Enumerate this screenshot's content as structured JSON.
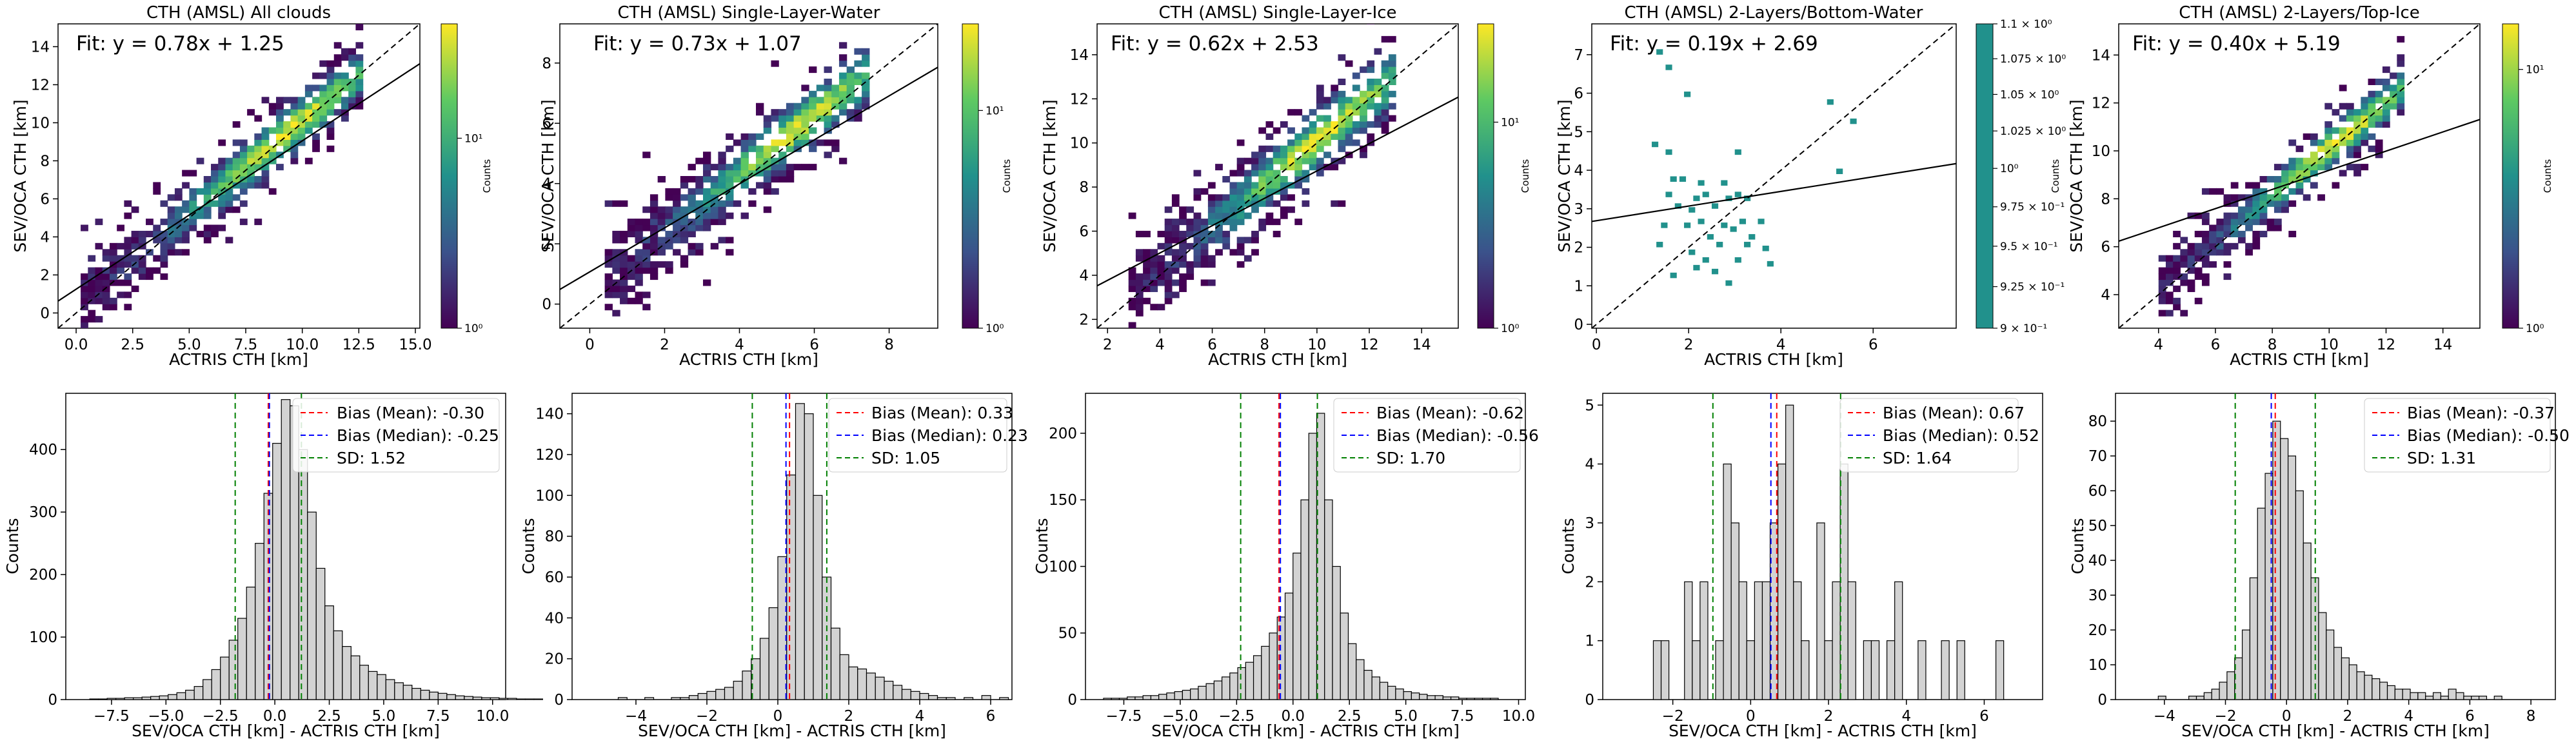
{
  "figure": {
    "colormap": [
      "#440154",
      "#3b528b",
      "#21918c",
      "#5ec962",
      "#fde725"
    ],
    "colors": {
      "one_to_one": "#000000",
      "fit_line": "#000000",
      "hist_fill": "#d3d3d3",
      "bias_mean": "#ff0000",
      "bias_median": "#0000ff",
      "sd": "#008000"
    }
  },
  "chart_data": [
    {
      "type": "heatmap",
      "title": "CTH (AMSL) All clouds",
      "xlabel": "ACTRIS CTH [km]",
      "ylabel": "SEV/OCA CTH [km]",
      "xlim": [
        -0.8,
        15.2
      ],
      "ylim": [
        -0.8,
        15.2
      ],
      "xticks": [
        "0.0",
        "2.5",
        "5.0",
        "7.5",
        "10.0",
        "12.5",
        "15.0"
      ],
      "xtick_values": [
        0,
        2.5,
        5,
        7.5,
        10,
        12.5,
        15
      ],
      "yticks": [
        "0",
        "2",
        "4",
        "6",
        "8",
        "10",
        "12",
        "14"
      ],
      "ytick_values": [
        0,
        2,
        4,
        6,
        8,
        10,
        12,
        14
      ],
      "fit_text": "Fit: y = 0.78x + 1.25",
      "fit": {
        "slope": 0.78,
        "intercept": 1.25
      },
      "colorbar": {
        "label": "Counts",
        "scale": "log",
        "min": 1,
        "max": 40,
        "ticks": [
          "10⁰",
          "10¹"
        ],
        "tick_values": [
          1,
          10
        ]
      },
      "density": {
        "x0": 0.2,
        "x1": 12.6,
        "spread": 1.25,
        "bins": 0.3
      }
    },
    {
      "type": "heatmap",
      "title": "CTH (AMSL) Single-Layer-Water",
      "xlabel": "ACTRIS CTH [km]",
      "ylabel": "SEV/OCA CTH [km]",
      "xlim": [
        -0.8,
        9.3
      ],
      "ylim": [
        -0.8,
        9.3
      ],
      "xticks": [
        "0",
        "2",
        "4",
        "6",
        "8"
      ],
      "xtick_values": [
        0,
        2,
        4,
        6,
        8
      ],
      "yticks": [
        "0",
        "2",
        "4",
        "6",
        "8"
      ],
      "ytick_values": [
        0,
        2,
        4,
        6,
        8
      ],
      "fit_text": "Fit: y = 0.73x + 1.07",
      "fit": {
        "slope": 0.73,
        "intercept": 1.07
      },
      "colorbar": {
        "label": "Counts",
        "scale": "log",
        "min": 1,
        "max": 25,
        "ticks": [
          "10⁰",
          "10¹"
        ],
        "tick_values": [
          1,
          10
        ]
      },
      "density": {
        "x0": 0.4,
        "x1": 7.4,
        "spread": 0.9,
        "bins": 0.2
      }
    },
    {
      "type": "heatmap",
      "title": "CTH (AMSL) Single-Layer-Ice",
      "xlabel": "ACTRIS CTH [km]",
      "ylabel": "SEV/OCA CTH [km]",
      "xlim": [
        1.6,
        15.4
      ],
      "ylim": [
        1.6,
        15.4
      ],
      "xticks": [
        "2",
        "4",
        "6",
        "8",
        "10",
        "12",
        "14"
      ],
      "xtick_values": [
        2,
        4,
        6,
        8,
        10,
        12,
        14
      ],
      "yticks": [
        "2",
        "4",
        "6",
        "8",
        "10",
        "12",
        "14"
      ],
      "ytick_values": [
        2,
        4,
        6,
        8,
        10,
        12,
        14
      ],
      "fit_text": "Fit: y = 0.62x + 2.53",
      "fit": {
        "slope": 0.62,
        "intercept": 2.53
      },
      "colorbar": {
        "label": "Counts",
        "scale": "log",
        "min": 1,
        "max": 30,
        "ticks": [
          "10⁰",
          "10¹"
        ],
        "tick_values": [
          1,
          10
        ]
      },
      "density": {
        "x0": 2.8,
        "x1": 12.8,
        "spread": 1.3,
        "bins": 0.26
      }
    },
    {
      "type": "scatter",
      "title": "CTH (AMSL) 2-Layers/Bottom-Water",
      "xlabel": "ACTRIS CTH [km]",
      "ylabel": "SEV/OCA CTH [km]",
      "xlim": [
        -0.1,
        7.8
      ],
      "ylim": [
        -0.1,
        7.8
      ],
      "xticks": [
        "0",
        "2",
        "4",
        "6"
      ],
      "xtick_values": [
        0,
        2,
        4,
        6
      ],
      "yticks": [
        "0",
        "1",
        "2",
        "3",
        "4",
        "5",
        "6",
        "7"
      ],
      "ytick_values": [
        0,
        1,
        2,
        3,
        4,
        5,
        6,
        7
      ],
      "fit_text": "Fit: y = 0.19x + 2.69",
      "fit": {
        "slope": 0.19,
        "intercept": 2.69
      },
      "colorbar": {
        "label": "Counts",
        "scale": "log",
        "min": 0.9,
        "max": 1.1,
        "ticks": [
          "9 × 10⁻¹",
          "9.25 × 10⁻¹",
          "9.5 × 10⁻¹",
          "9.75 × 10⁻¹",
          "10⁰",
          "1.025 × 10⁰",
          "1.05 × 10⁰",
          "1.075 × 10⁰",
          "1.1 × 10⁰"
        ],
        "tick_values": [
          0.9,
          0.925,
          0.95,
          0.975,
          1.0,
          1.025,
          1.05,
          1.075,
          1.1
        ]
      },
      "points": [
        [
          1.3,
          7.0
        ],
        [
          1.5,
          6.6
        ],
        [
          1.2,
          4.6
        ],
        [
          1.5,
          4.4
        ],
        [
          1.6,
          3.7
        ],
        [
          1.8,
          3.7
        ],
        [
          1.5,
          3.3
        ],
        [
          1.7,
          3.0
        ],
        [
          2.0,
          2.9
        ],
        [
          2.1,
          3.2
        ],
        [
          2.3,
          3.3
        ],
        [
          2.5,
          3.0
        ],
        [
          2.8,
          3.2
        ],
        [
          3.0,
          3.3
        ],
        [
          3.2,
          3.2
        ],
        [
          1.4,
          2.5
        ],
        [
          1.9,
          2.5
        ],
        [
          2.2,
          2.6
        ],
        [
          2.4,
          2.2
        ],
        [
          2.6,
          2.0
        ],
        [
          2.7,
          2.5
        ],
        [
          2.9,
          2.4
        ],
        [
          3.1,
          2.6
        ],
        [
          3.3,
          2.2
        ],
        [
          3.5,
          2.6
        ],
        [
          1.3,
          2.0
        ],
        [
          2.0,
          1.8
        ],
        [
          2.3,
          1.6
        ],
        [
          2.5,
          1.3
        ],
        [
          2.8,
          1.0
        ],
        [
          3.0,
          1.6
        ],
        [
          3.2,
          2.0
        ],
        [
          3.6,
          1.9
        ],
        [
          3.7,
          1.5
        ],
        [
          1.6,
          1.2
        ],
        [
          2.1,
          1.4
        ],
        [
          1.9,
          5.9
        ],
        [
          3.0,
          4.4
        ],
        [
          5.0,
          5.7
        ],
        [
          5.5,
          5.2
        ],
        [
          5.2,
          3.9
        ],
        [
          2.2,
          3.6
        ],
        [
          2.7,
          3.6
        ]
      ]
    },
    {
      "type": "heatmap",
      "title": "CTH (AMSL) 2-Layers/Top-Ice",
      "xlabel": "ACTRIS CTH [km]",
      "ylabel": "SEV/OCA CTH [km]",
      "xlim": [
        2.6,
        15.3
      ],
      "ylim": [
        2.6,
        15.3
      ],
      "xticks": [
        "4",
        "6",
        "8",
        "10",
        "12",
        "14"
      ],
      "xtick_values": [
        4,
        6,
        8,
        10,
        12,
        14
      ],
      "yticks": [
        "4",
        "6",
        "8",
        "10",
        "12",
        "14"
      ],
      "ytick_values": [
        4,
        6,
        8,
        10,
        12,
        14
      ],
      "fit_text": "Fit: y = 0.40x + 5.19",
      "fit": {
        "slope": 0.4,
        "intercept": 5.19
      },
      "colorbar": {
        "label": "Counts",
        "scale": "log",
        "min": 1,
        "max": 15,
        "ticks": [
          "10⁰",
          "10¹"
        ],
        "tick_values": [
          1,
          10
        ]
      },
      "density": {
        "x0": 4.0,
        "x1": 12.6,
        "spread": 0.9,
        "bins": 0.3
      }
    },
    {
      "type": "bar",
      "xlabel": "SEV/OCA CTH [km] - ACTRIS CTH [km]",
      "ylabel": "Counts",
      "xlim": [
        -9.6,
        10.6
      ],
      "ylim": [
        0,
        490
      ],
      "xticks": [
        "−7.5",
        "−5.0",
        "−2.5",
        "0.0",
        "2.5",
        "5.0",
        "7.5",
        "10.0"
      ],
      "xtick_values": [
        -7.5,
        -5,
        -2.5,
        0,
        2.5,
        5,
        7.5,
        10
      ],
      "yticks": [
        "0",
        "100",
        "200",
        "300",
        "400"
      ],
      "ytick_values": [
        0,
        100,
        200,
        300,
        400
      ],
      "hist": {
        "start": -8.5,
        "width": 0.4,
        "counts": [
          1,
          1,
          2,
          2,
          3,
          3,
          4,
          5,
          6,
          8,
          11,
          15,
          21,
          32,
          48,
          68,
          95,
          130,
          180,
          250,
          330,
          410,
          480,
          470,
          400,
          300,
          210,
          150,
          110,
          85,
          70,
          55,
          45,
          40,
          32,
          27,
          23,
          18,
          15,
          12,
          10,
          8,
          6,
          5,
          4,
          3,
          3,
          2,
          2,
          1,
          1,
          1
        ]
      },
      "bias_mean": -0.3,
      "bias_median": -0.25,
      "sd": 1.52,
      "legend": [
        "Bias (Mean): -0.30",
        "Bias (Median): -0.25",
        "SD: 1.52"
      ]
    },
    {
      "type": "bar",
      "xlabel": "SEV/OCA CTH [km] - ACTRIS CTH [km]",
      "ylabel": "Counts",
      "xlim": [
        -5.8,
        6.6
      ],
      "ylim": [
        0,
        150
      ],
      "xticks": [
        "−4",
        "−2",
        "0",
        "2",
        "4",
        "6"
      ],
      "xtick_values": [
        -4,
        -2,
        0,
        2,
        4,
        6
      ],
      "yticks": [
        "0",
        "20",
        "40",
        "60",
        "80",
        "100",
        "120",
        "140"
      ],
      "ytick_values": [
        0,
        20,
        40,
        60,
        80,
        100,
        120,
        140
      ],
      "hist": {
        "start": -4.5,
        "width": 0.25,
        "counts": [
          1,
          0,
          0,
          1,
          0,
          0,
          1,
          1,
          2,
          3,
          4,
          5,
          6,
          9,
          14,
          20,
          30,
          45,
          70,
          110,
          145,
          140,
          100,
          60,
          35,
          22,
          16,
          15,
          13,
          11,
          9,
          7,
          5,
          4,
          3,
          2,
          1,
          1,
          0,
          1,
          0,
          2,
          0,
          1
        ]
      },
      "bias_mean": 0.33,
      "bias_median": 0.23,
      "sd": 1.05,
      "legend": [
        "Bias (Mean): 0.33",
        "Bias (Median): 0.23",
        "SD: 1.05"
      ]
    },
    {
      "type": "bar",
      "xlabel": "SEV/OCA CTH [km] - ACTRIS CTH [km]",
      "ylabel": "Counts",
      "xlim": [
        -9.2,
        10.3
      ],
      "ylim": [
        0,
        230
      ],
      "xticks": [
        "−7.5",
        "−5.0",
        "−2.5",
        "0.0",
        "2.5",
        "5.0",
        "7.5",
        "10.0"
      ],
      "xtick_values": [
        -7.5,
        -5,
        -2.5,
        0,
        2.5,
        5,
        7.5,
        10
      ],
      "yticks": [
        "0",
        "50",
        "100",
        "150",
        "200"
      ],
      "ytick_values": [
        0,
        50,
        100,
        150,
        200
      ],
      "hist": {
        "start": -8.4,
        "width": 0.35,
        "counts": [
          1,
          1,
          1,
          2,
          2,
          3,
          3,
          4,
          5,
          6,
          7,
          8,
          10,
          12,
          14,
          17,
          20,
          24,
          28,
          33,
          40,
          50,
          62,
          80,
          110,
          150,
          200,
          215,
          150,
          100,
          65,
          42,
          30,
          22,
          17,
          13,
          10,
          8,
          6,
          5,
          4,
          3,
          3,
          2,
          2,
          1,
          1,
          1,
          1,
          1
        ]
      },
      "bias_mean": -0.62,
      "bias_median": -0.56,
      "sd": 1.7,
      "legend": [
        "Bias (Mean): -0.62",
        "Bias (Median): -0.56",
        "SD: 1.70"
      ]
    },
    {
      "type": "bar",
      "xlabel": "SEV/OCA CTH [km] - ACTRIS CTH [km]",
      "ylabel": "Counts",
      "xlim": [
        -3.8,
        7.5
      ],
      "ylim": [
        0,
        5.2
      ],
      "xticks": [
        "−2",
        "0",
        "2",
        "4",
        "6"
      ],
      "xtick_values": [
        -2,
        0,
        2,
        4,
        6
      ],
      "yticks": [
        "0",
        "1",
        "2",
        "3",
        "4",
        "5"
      ],
      "ytick_values": [
        0,
        1,
        2,
        3,
        4,
        5
      ],
      "hist": {
        "start": -2.5,
        "width": 0.2,
        "counts": [
          1,
          1,
          0,
          0,
          2,
          1,
          2,
          0,
          1,
          4,
          3,
          2,
          1,
          2,
          2,
          3,
          4,
          5,
          2,
          1,
          0,
          3,
          1,
          2,
          4,
          2,
          0,
          1,
          1,
          0,
          1,
          2,
          0,
          0,
          1,
          0,
          0,
          1,
          0,
          1,
          0,
          0,
          0,
          0,
          1
        ]
      },
      "bias_mean": 0.67,
      "bias_median": 0.52,
      "sd": 1.64,
      "legend": [
        "Bias (Mean): 0.67",
        "Bias (Median): 0.52",
        "SD: 1.64"
      ]
    },
    {
      "type": "bar",
      "xlabel": "SEV/OCA CTH [km] - ACTRIS CTH [km]",
      "ylabel": "Counts",
      "xlim": [
        -5.6,
        8.8
      ],
      "ylim": [
        0,
        88
      ],
      "xticks": [
        "−4",
        "−2",
        "0",
        "2",
        "4",
        "6",
        "8"
      ],
      "xtick_values": [
        -4,
        -2,
        0,
        2,
        4,
        6,
        8
      ],
      "yticks": [
        "0",
        "10",
        "20",
        "30",
        "40",
        "50",
        "60",
        "70",
        "80"
      ],
      "ytick_values": [
        0,
        10,
        20,
        30,
        40,
        50,
        60,
        70,
        80
      ],
      "hist": {
        "start": -4.2,
        "width": 0.25,
        "counts": [
          1,
          0,
          0,
          0,
          1,
          1,
          2,
          3,
          5,
          8,
          12,
          20,
          35,
          55,
          65,
          80,
          75,
          70,
          60,
          45,
          35,
          25,
          20,
          15,
          12,
          10,
          8,
          7,
          6,
          5,
          4,
          3,
          3,
          2,
          2,
          1,
          2,
          1,
          3,
          2,
          1,
          1,
          1,
          0,
          1
        ]
      },
      "bias_mean": -0.37,
      "bias_median": -0.5,
      "sd": 1.31,
      "legend": [
        "Bias (Mean): -0.37",
        "Bias (Median): -0.50",
        "SD: 1.31"
      ]
    }
  ]
}
